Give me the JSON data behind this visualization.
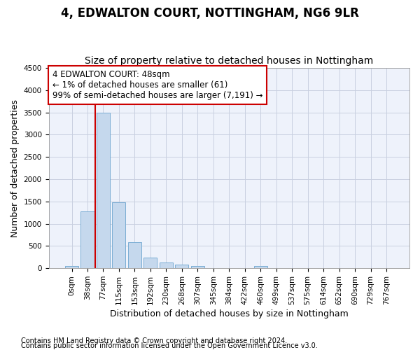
{
  "title": "4, EDWALTON COURT, NOTTINGHAM, NG6 9LR",
  "subtitle": "Size of property relative to detached houses in Nottingham",
  "xlabel": "Distribution of detached houses by size in Nottingham",
  "ylabel": "Number of detached properties",
  "bar_color": "#c5d8ed",
  "bar_edge_color": "#7aadd4",
  "background_color": "#eef2fb",
  "grid_color": "#c8cfe0",
  "categories": [
    "0sqm",
    "38sqm",
    "77sqm",
    "115sqm",
    "153sqm",
    "192sqm",
    "230sqm",
    "268sqm",
    "307sqm",
    "345sqm",
    "384sqm",
    "422sqm",
    "460sqm",
    "499sqm",
    "537sqm",
    "575sqm",
    "614sqm",
    "652sqm",
    "690sqm",
    "729sqm",
    "767sqm"
  ],
  "values": [
    50,
    1280,
    3500,
    1480,
    580,
    240,
    135,
    80,
    50,
    0,
    0,
    0,
    50,
    0,
    0,
    0,
    0,
    0,
    0,
    0,
    0
  ],
  "ylim": [
    0,
    4500
  ],
  "yticks": [
    0,
    500,
    1000,
    1500,
    2000,
    2500,
    3000,
    3500,
    4000,
    4500
  ],
  "annotation_text": "4 EDWALTON COURT: 48sqm\n← 1% of detached houses are smaller (61)\n99% of semi-detached houses are larger (7,191) →",
  "vline_x": 1.5,
  "vline_color": "#cc0000",
  "annotation_box_color": "#ffffff",
  "annotation_box_edge": "#cc0000",
  "footer_line1": "Contains HM Land Registry data © Crown copyright and database right 2024.",
  "footer_line2": "Contains public sector information licensed under the Open Government Licence v3.0.",
  "title_fontsize": 12,
  "subtitle_fontsize": 10,
  "axis_label_fontsize": 9,
  "tick_fontsize": 7.5,
  "annotation_fontsize": 8.5,
  "footer_fontsize": 7
}
